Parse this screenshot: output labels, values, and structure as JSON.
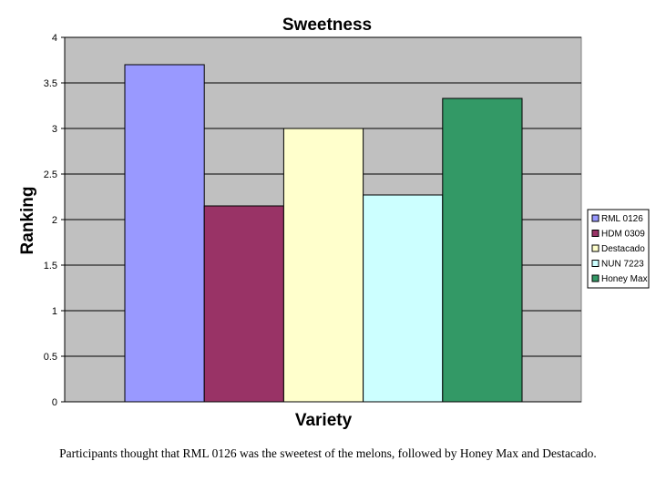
{
  "chart_data": {
    "type": "bar",
    "title": "Sweetness",
    "xlabel": "Variety",
    "ylabel": "Ranking",
    "ylim": [
      0,
      4
    ],
    "yticks": [
      "0",
      "0.5",
      "1",
      "1.5",
      "2",
      "2.5",
      "3",
      "3.5",
      "4"
    ],
    "grid": true,
    "legend_position": "right",
    "plot_background": "#c0c0c0",
    "series": [
      {
        "name": "RML 0126",
        "value": 3.7,
        "color": "#9999ff"
      },
      {
        "name": "HDM 0309",
        "value": 2.15,
        "color": "#993366"
      },
      {
        "name": "Destacado",
        "value": 3.0,
        "color": "#ffffcc"
      },
      {
        "name": "NUN 7223",
        "value": 2.27,
        "color": "#ccffff"
      },
      {
        "name": "Honey Max",
        "value": 3.33,
        "color": "#339966"
      }
    ]
  },
  "caption": "Participants thought that RML 0126 was the sweetest of the melons, followed by Honey Max and Destacado."
}
